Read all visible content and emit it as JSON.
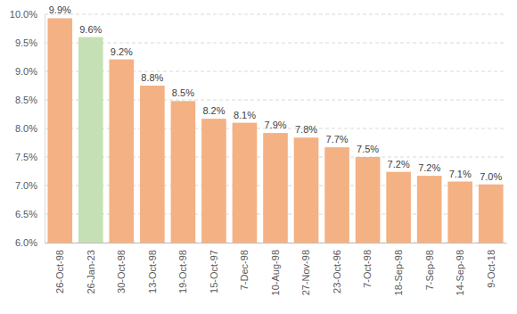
{
  "chart_data": {
    "type": "bar",
    "categories": [
      "26-Oct-98",
      "26-Jan-23",
      "30-Oct-98",
      "13-Oct-98",
      "19-Oct-98",
      "15-Oct-97",
      "7-Dec-98",
      "10-Aug-98",
      "27-Nov-98",
      "23-Oct-96",
      "7-Oct-98",
      "18-Sep-98",
      "7-Sep-98",
      "14-Sep-98",
      "9-Oct-18"
    ],
    "values": [
      9.93,
      9.6,
      9.21,
      8.75,
      8.48,
      8.17,
      8.1,
      7.92,
      7.84,
      7.67,
      7.5,
      7.24,
      7.17,
      7.07,
      7.02
    ],
    "value_labels": [
      "9.9%",
      "9.6%",
      "9.2%",
      "8.8%",
      "8.5%",
      "8.2%",
      "8.1%",
      "7.9%",
      "7.8%",
      "7.7%",
      "7.5%",
      "7.2%",
      "7.2%",
      "7.1%",
      "7.0%"
    ],
    "colors": [
      "#f4b183",
      "#c5e0b4",
      "#f4b183",
      "#f4b183",
      "#f4b183",
      "#f4b183",
      "#f4b183",
      "#f4b183",
      "#f4b183",
      "#f4b183",
      "#f4b183",
      "#f4b183",
      "#f4b183",
      "#f4b183",
      "#f4b183"
    ],
    "ylim": [
      6,
      10
    ],
    "yticks": [
      {
        "value": 6,
        "label": "6.0%"
      },
      {
        "value": 6.5,
        "label": "6.5%"
      },
      {
        "value": 7,
        "label": "7.0%"
      },
      {
        "value": 7.5,
        "label": "7.5%"
      },
      {
        "value": 8,
        "label": "8.0%"
      },
      {
        "value": 8.5,
        "label": "8.5%"
      },
      {
        "value": 9,
        "label": "9.0%"
      },
      {
        "value": 9.5,
        "label": "9.5%"
      },
      {
        "value": 10,
        "label": "10.0%"
      }
    ],
    "grid": true,
    "data_labels": true
  }
}
